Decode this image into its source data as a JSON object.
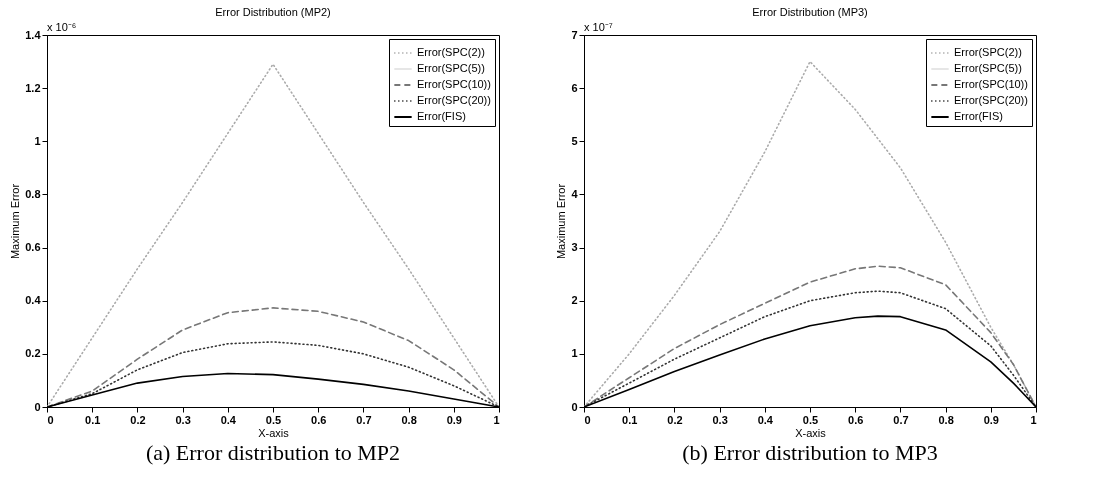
{
  "chart_data": [
    {
      "type": "line",
      "title": "Error Distribution (MP2)",
      "xlabel": "X-axis",
      "ylabel": "Maximum Error",
      "annotations": [
        "x 10⁻⁶",
        "(a) Error distribution to MP2"
      ],
      "x": [
        0,
        0.1,
        0.2,
        0.3,
        0.4,
        0.5,
        0.6,
        0.7,
        0.8,
        0.9,
        0.95,
        1
      ],
      "series": [
        {
          "name": "Error(SPC(2))",
          "color": "#aaaaaa",
          "line_style": "dotted",
          "values": [
            0,
            0.26,
            0.52,
            0.77,
            1.03,
            1.29,
            1.03,
            0.77,
            0.52,
            0.26,
            0.13,
            0
          ]
        },
        {
          "name": "Error(SPC(5))",
          "color": "#e6e6e6",
          "line_style": "solid",
          "values": [
            null,
            null,
            null,
            null,
            null,
            null,
            null,
            null,
            null,
            null,
            null,
            null
          ]
        },
        {
          "name": "Error(SPC(10))",
          "color": "#777777",
          "line_style": "dashed",
          "values": [
            0,
            0.06,
            0.18,
            0.29,
            0.355,
            0.373,
            0.36,
            0.32,
            0.25,
            0.14,
            0.07,
            0
          ]
        },
        {
          "name": "Error(SPC(20))",
          "color": "#333333",
          "line_style": "dotted",
          "values": [
            0,
            0.05,
            0.14,
            0.205,
            0.238,
            0.245,
            0.232,
            0.2,
            0.15,
            0.08,
            0.04,
            0
          ]
        },
        {
          "name": "Error(FIS)",
          "color": "#000000",
          "line_style": "solid",
          "values": [
            0,
            0.045,
            0.09,
            0.115,
            0.126,
            0.122,
            0.105,
            0.085,
            0.06,
            0.03,
            0.015,
            0
          ]
        }
      ],
      "xlim": [
        0,
        1
      ],
      "xticks": [
        0,
        0.1,
        0.2,
        0.3,
        0.4,
        0.5,
        0.6,
        0.7,
        0.8,
        0.9,
        1
      ],
      "ylim": [
        0,
        1.4
      ],
      "yticks": [
        0,
        0.2,
        0.4,
        0.6,
        0.8,
        1,
        1.2,
        1.4
      ],
      "legend": "top right",
      "grid": false,
      "marker": "none"
    },
    {
      "type": "line",
      "title": "Error Distribution (MP3)",
      "xlabel": "X-axis",
      "ylabel": "Maximum Error",
      "annotations": [
        "x 10⁻⁷",
        "(b) Error distribution to MP3"
      ],
      "x": [
        0,
        0.1,
        0.2,
        0.3,
        0.4,
        0.5,
        0.6,
        0.65,
        0.7,
        0.8,
        0.9,
        0.95,
        1
      ],
      "series": [
        {
          "name": "Error(SPC(2))",
          "color": "#aaaaaa",
          "line_style": "dotted",
          "values": [
            0,
            1.0,
            2.1,
            3.3,
            4.8,
            6.5,
            5.6,
            5.05,
            4.5,
            3.1,
            1.5,
            0.8,
            0
          ]
        },
        {
          "name": "Error(SPC(5))",
          "color": "#e6e6e6",
          "line_style": "solid",
          "values": [
            null,
            null,
            null,
            null,
            null,
            null,
            null,
            null,
            null,
            null,
            null,
            null,
            null
          ]
        },
        {
          "name": "Error(SPC(10))",
          "color": "#777777",
          "line_style": "dashed",
          "values": [
            0,
            0.55,
            1.1,
            1.55,
            1.95,
            2.35,
            2.6,
            2.65,
            2.62,
            2.3,
            1.4,
            0.8,
            0
          ]
        },
        {
          "name": "Error(SPC(20))",
          "color": "#333333",
          "line_style": "dotted",
          "values": [
            0,
            0.45,
            0.9,
            1.3,
            1.7,
            2.0,
            2.15,
            2.18,
            2.15,
            1.85,
            1.15,
            0.6,
            0
          ]
        },
        {
          "name": "Error(FIS)",
          "color": "#000000",
          "line_style": "solid",
          "values": [
            0,
            0.33,
            0.67,
            0.98,
            1.28,
            1.53,
            1.68,
            1.71,
            1.7,
            1.45,
            0.85,
            0.45,
            0
          ]
        }
      ],
      "xlim": [
        0,
        1
      ],
      "xticks": [
        0,
        0.1,
        0.2,
        0.3,
        0.4,
        0.5,
        0.6,
        0.7,
        0.8,
        0.9,
        1
      ],
      "ylim": [
        0,
        7
      ],
      "yticks": [
        0,
        1,
        2,
        3,
        4,
        5,
        6,
        7
      ],
      "legend": "top right",
      "grid": false,
      "marker": "none"
    }
  ]
}
